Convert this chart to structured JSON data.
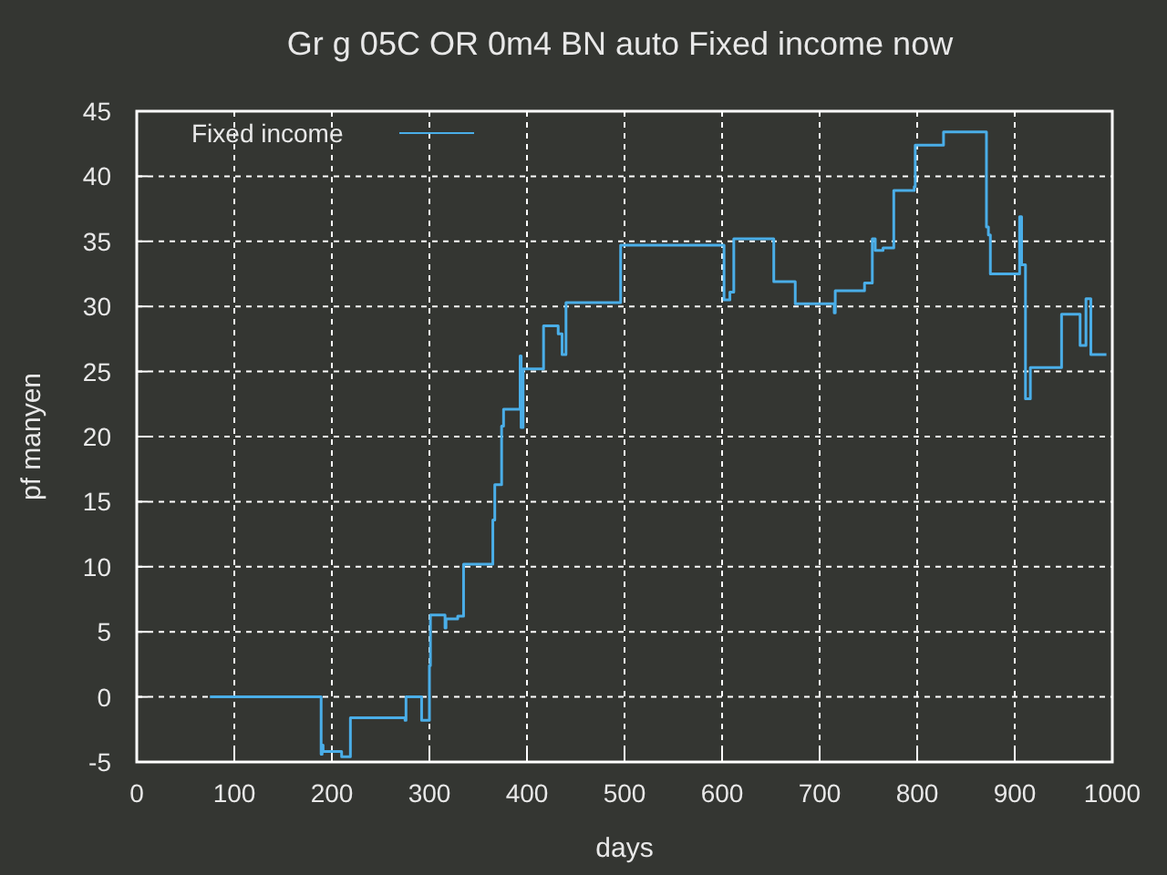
{
  "chart_data": {
    "type": "step",
    "title": "Gr g 05C OR 0m4 BN auto Fixed income now",
    "xlabel": "days",
    "ylabel": "pf manyen",
    "x": [
      75,
      189,
      190,
      191,
      210,
      219,
      275,
      276,
      292,
      300,
      301,
      316,
      317,
      329,
      335,
      365,
      367,
      374,
      376,
      393,
      394,
      396,
      417,
      432,
      436,
      440,
      496,
      602,
      608,
      612,
      653,
      675,
      715,
      716,
      746,
      754,
      757,
      765,
      776,
      797,
      798,
      827,
      871,
      873,
      875,
      905,
      907,
      911,
      916,
      948,
      967,
      973,
      978,
      994
    ],
    "series": [
      {
        "name": "Fixed income",
        "color": "#4aaee8",
        "values": [
          0,
          -4.4,
          -3.7,
          -4.2,
          -4.6,
          -1.6,
          -1.8,
          0,
          -1.8,
          2.4,
          6.3,
          5.3,
          6.0,
          6.2,
          10.2,
          13.6,
          16.3,
          20.8,
          22.1,
          26.2,
          20.7,
          25.2,
          28.5,
          27.9,
          26.3,
          30.3,
          34.7,
          30.5,
          31.1,
          35.2,
          31.9,
          30.2,
          29.5,
          31.2,
          31.8,
          35.2,
          34.3,
          34.5,
          38.9,
          39.2,
          42.4,
          43.4,
          36.1,
          35.5,
          32.5,
          36.9,
          33.2,
          22.9,
          25.3,
          29.4,
          27.0,
          30.6,
          26.3,
          26.3
        ]
      }
    ],
    "xlim": [
      0,
      1000
    ],
    "ylim": [
      -5,
      45
    ],
    "xticks": [
      0,
      100,
      200,
      300,
      400,
      500,
      600,
      700,
      800,
      900,
      1000
    ],
    "yticks": [
      -5,
      0,
      5,
      10,
      15,
      20,
      25,
      30,
      35,
      40,
      45
    ],
    "grid": true,
    "legend": "top left"
  }
}
